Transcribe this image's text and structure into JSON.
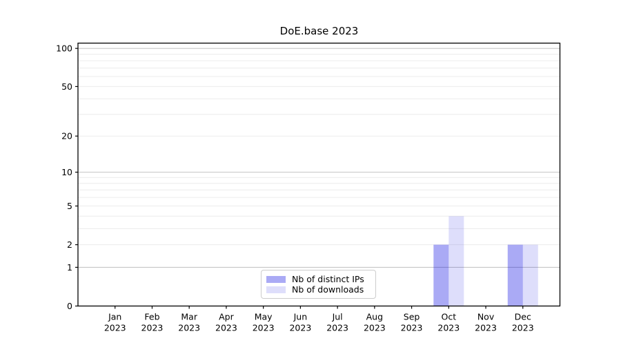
{
  "title": "DoE.base 2023",
  "chart_data": {
    "type": "bar",
    "title": "DoE.base 2023",
    "categories": [
      "Jan",
      "Feb",
      "Mar",
      "Apr",
      "May",
      "Jun",
      "Jul",
      "Aug",
      "Sep",
      "Oct",
      "Nov",
      "Dec"
    ],
    "year_label": "2023",
    "series": [
      {
        "name": "Nb of distinct IPs",
        "legend_color": "#aaaaf5",
        "fill": "#0000e0",
        "fill_alpha": 0.335,
        "values": [
          0,
          0,
          0,
          0,
          0,
          0,
          0,
          0,
          0,
          2,
          0,
          2
        ]
      },
      {
        "name": "Nb of downloads",
        "legend_color": "#dedefb",
        "fill": "#0000e0",
        "fill_alpha": 0.13,
        "values": [
          0,
          0,
          0,
          0,
          0,
          0,
          0,
          0,
          0,
          4,
          0,
          2
        ]
      }
    ],
    "y_axis": {
      "scale": "log1p",
      "ticks": [
        0,
        1,
        2,
        5,
        10,
        20,
        50,
        100
      ],
      "max": 110,
      "major_gridlines": [
        1,
        10,
        100
      ],
      "minor_gridlines": [
        2,
        3,
        4,
        5,
        6,
        7,
        8,
        9,
        20,
        30,
        40,
        50,
        60,
        70,
        80,
        90
      ]
    },
    "x_axis": {
      "label": "",
      "tick_lines": 2
    },
    "legend": {
      "position": "lower center"
    },
    "grid": "horizontal",
    "ylim": [
      0,
      110
    ]
  },
  "colors": {
    "minor_grid": "#ececec",
    "major_grid": "#c6c6c6",
    "axis": "#000000",
    "text": "#000000",
    "background": "#ffffff"
  }
}
